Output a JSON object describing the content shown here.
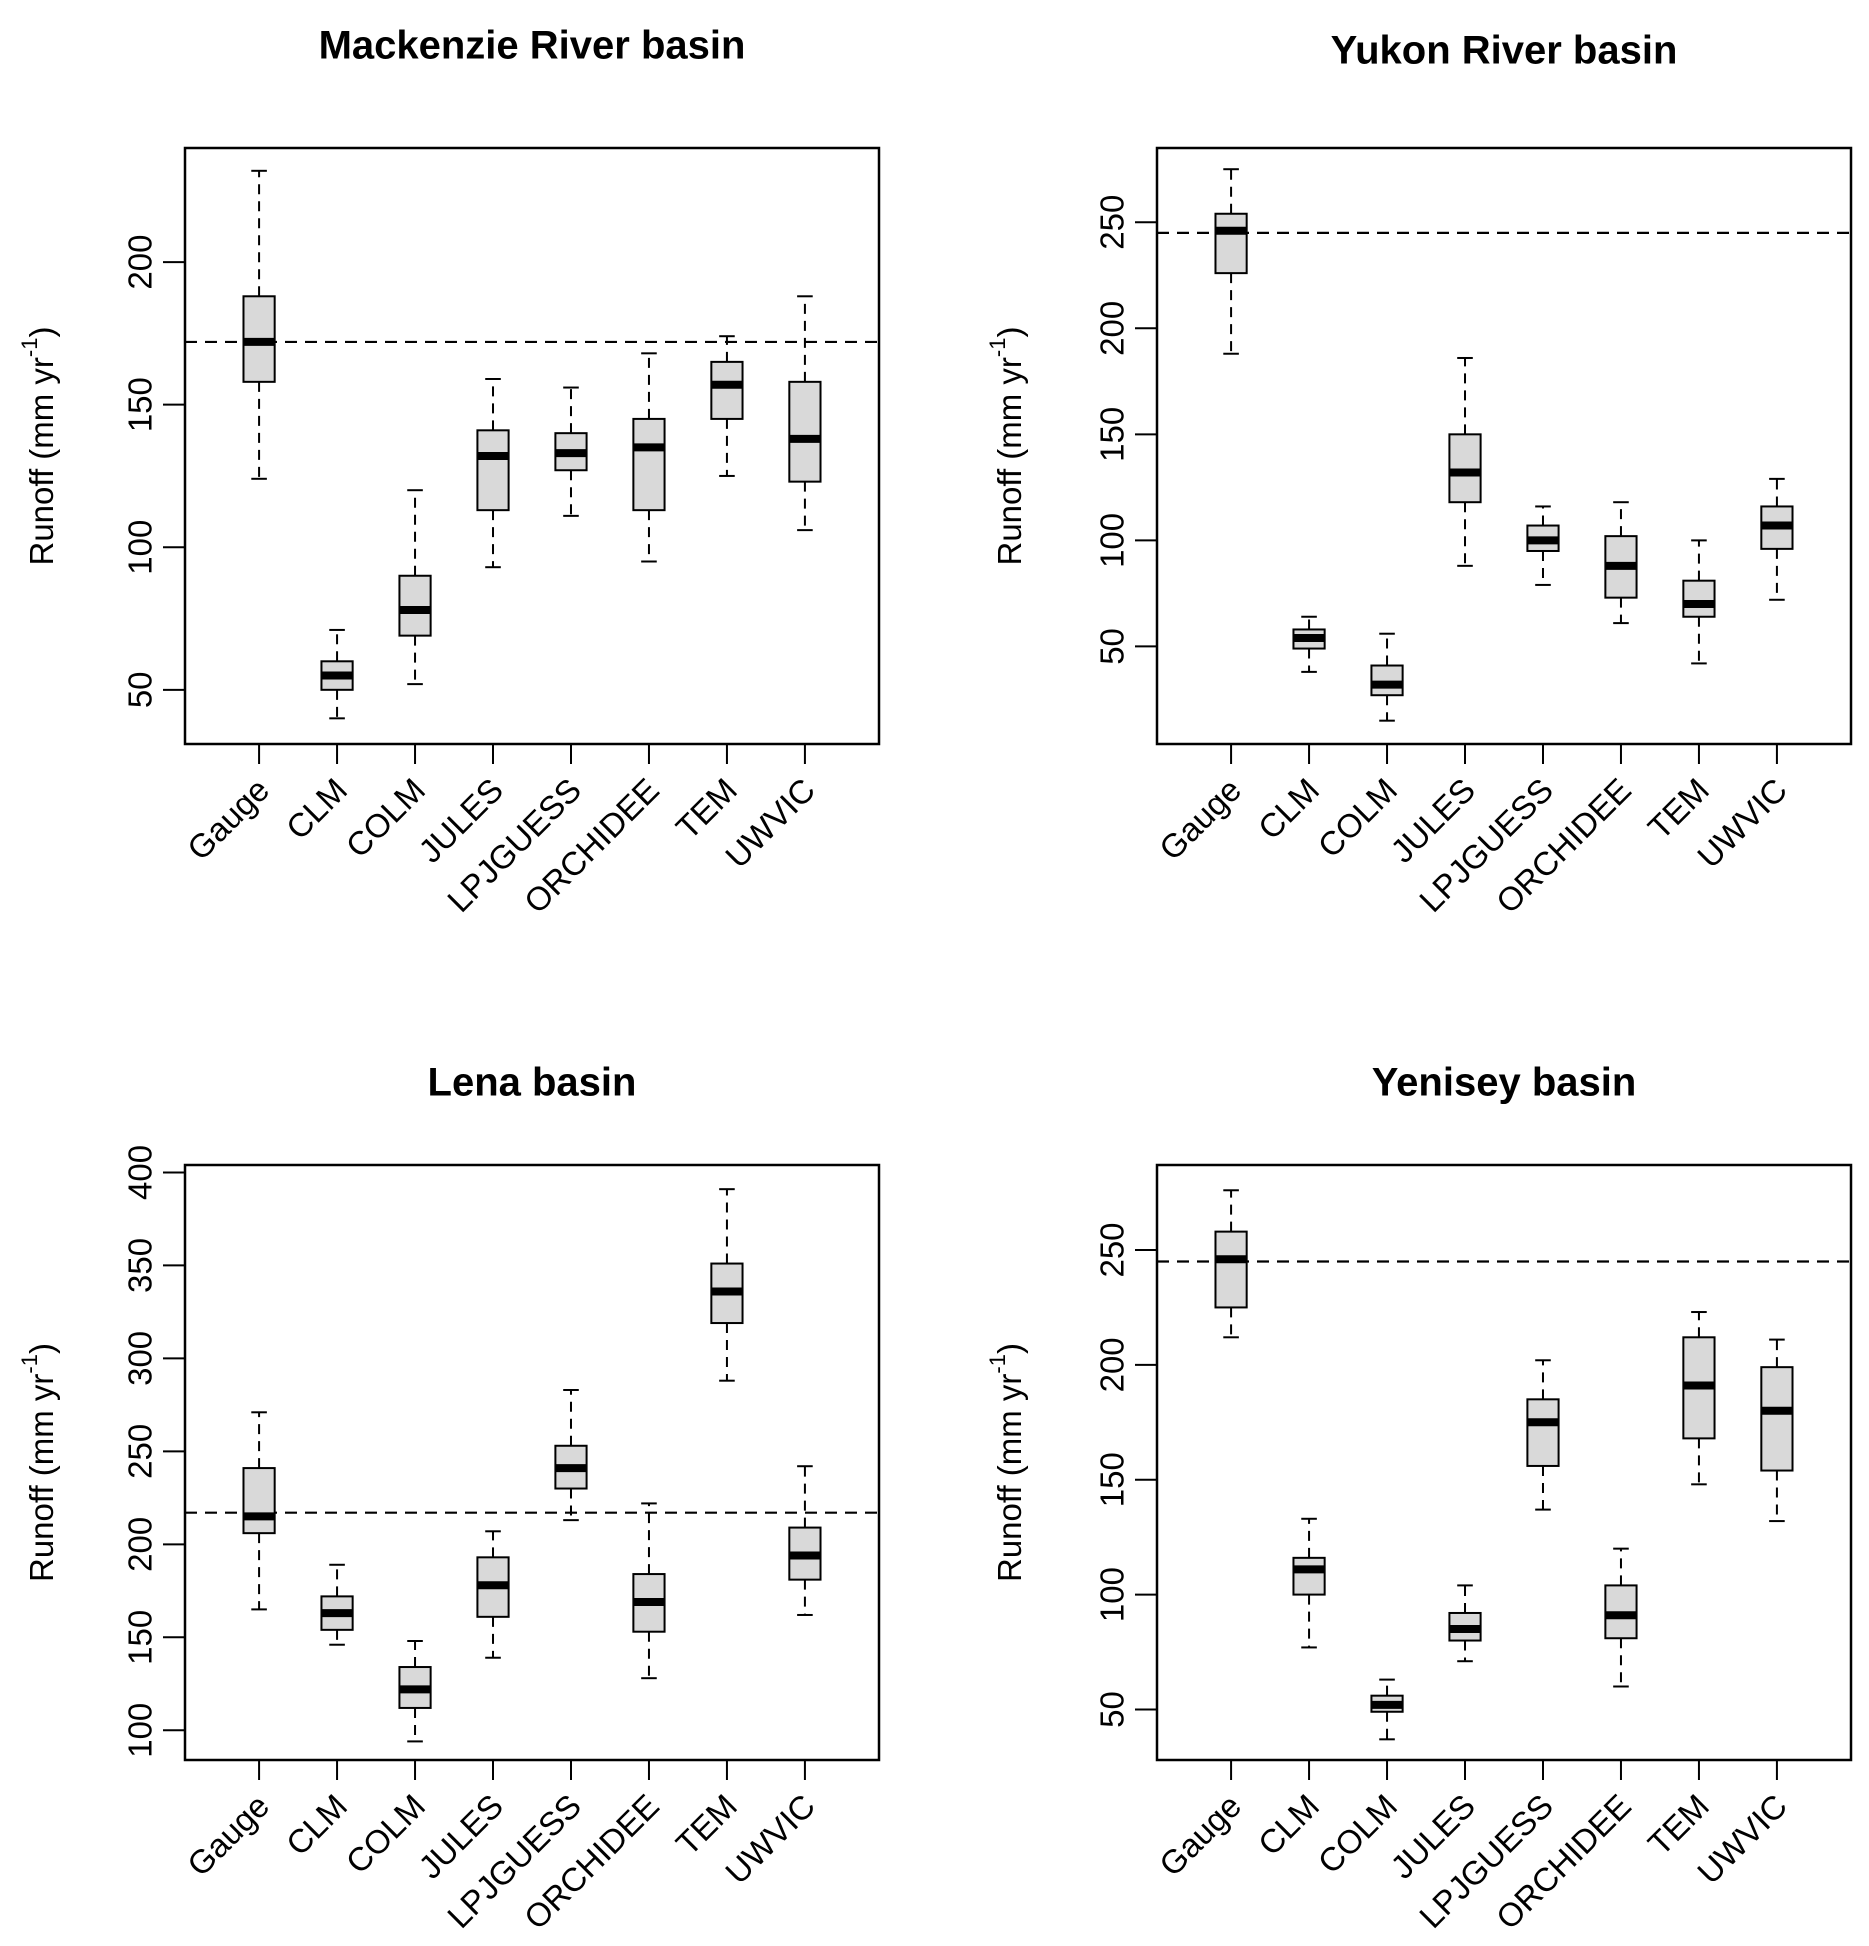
{
  "chart_data": [
    {
      "type": "box",
      "title": "Mackenzie River basin",
      "ylabel": {
        "main": "Runoff (mm yr",
        "sup": "-1",
        "close": ")"
      },
      "categories": [
        "Gauge",
        "CLM",
        "COLM",
        "JULES",
        "LPJGUESS",
        "ORCHIDEE",
        "TEM",
        "UWVIC"
      ],
      "ylim": [
        31,
        240
      ],
      "yticks": [
        50,
        100,
        150,
        200
      ],
      "reference_line": 172,
      "boxes": [
        {
          "min": 124,
          "q1": 158,
          "median": 172,
          "q3": 188,
          "max": 232
        },
        {
          "min": 40,
          "q1": 50,
          "median": 55,
          "q3": 60,
          "max": 71
        },
        {
          "min": 52,
          "q1": 69,
          "median": 78,
          "q3": 90,
          "max": 120
        },
        {
          "min": 93,
          "q1": 113,
          "median": 132,
          "q3": 141,
          "max": 159
        },
        {
          "min": 111,
          "q1": 127,
          "median": 133,
          "q3": 140,
          "max": 156
        },
        {
          "min": 95,
          "q1": 113,
          "median": 135,
          "q3": 145,
          "max": 168
        },
        {
          "min": 125,
          "q1": 145,
          "median": 157,
          "q3": 165,
          "max": 174
        },
        {
          "min": 106,
          "q1": 123,
          "median": 138,
          "q3": 158,
          "max": 188
        }
      ]
    },
    {
      "type": "box",
      "title": "Yukon River basin",
      "ylabel": {
        "main": "Runoff (mm yr",
        "sup": "-1",
        "close": ")"
      },
      "categories": [
        "Gauge",
        "CLM",
        "COLM",
        "JULES",
        "LPJGUESS",
        "ORCHIDEE",
        "TEM",
        "UWVIC"
      ],
      "ylim": [
        4,
        285
      ],
      "yticks": [
        50,
        100,
        150,
        200,
        250
      ],
      "reference_line": 245,
      "boxes": [
        {
          "min": 188,
          "q1": 226,
          "median": 246,
          "q3": 254,
          "max": 275
        },
        {
          "min": 38,
          "q1": 49,
          "median": 54,
          "q3": 58,
          "max": 64
        },
        {
          "min": 15,
          "q1": 27,
          "median": 32,
          "q3": 41,
          "max": 56
        },
        {
          "min": 88,
          "q1": 118,
          "median": 132,
          "q3": 150,
          "max": 186
        },
        {
          "min": 79,
          "q1": 95,
          "median": 100,
          "q3": 107,
          "max": 116
        },
        {
          "min": 61,
          "q1": 73,
          "median": 88,
          "q3": 102,
          "max": 118
        },
        {
          "min": 42,
          "q1": 64,
          "median": 70,
          "q3": 81,
          "max": 100
        },
        {
          "min": 72,
          "q1": 96,
          "median": 107,
          "q3": 116,
          "max": 129
        }
      ]
    },
    {
      "type": "box",
      "title": "Lena basin",
      "ylabel": {
        "main": "Runoff (mm yr",
        "sup": "-1",
        "close": ")"
      },
      "categories": [
        "Gauge",
        "CLM",
        "COLM",
        "JULES",
        "LPJGUESS",
        "ORCHIDEE",
        "TEM",
        "UWVIC"
      ],
      "ylim": [
        84,
        404
      ],
      "yticks": [
        100,
        150,
        200,
        250,
        300,
        350,
        400
      ],
      "reference_line": 217,
      "boxes": [
        {
          "min": 165,
          "q1": 206,
          "median": 215,
          "q3": 241,
          "max": 271
        },
        {
          "min": 146,
          "q1": 154,
          "median": 163,
          "q3": 172,
          "max": 189
        },
        {
          "min": 94,
          "q1": 112,
          "median": 122,
          "q3": 134,
          "max": 148
        },
        {
          "min": 139,
          "q1": 161,
          "median": 178,
          "q3": 193,
          "max": 207
        },
        {
          "min": 213,
          "q1": 230,
          "median": 241,
          "q3": 253,
          "max": 283
        },
        {
          "min": 128,
          "q1": 153,
          "median": 169,
          "q3": 184,
          "max": 222
        },
        {
          "min": 288,
          "q1": 319,
          "median": 336,
          "q3": 351,
          "max": 391
        },
        {
          "min": 162,
          "q1": 181,
          "median": 194,
          "q3": 209,
          "max": 242
        }
      ]
    },
    {
      "type": "box",
      "title": "Yenisey basin",
      "ylabel": {
        "main": "Runoff (mm yr",
        "sup": "-1",
        "close": ")"
      },
      "categories": [
        "Gauge",
        "CLM",
        "COLM",
        "JULES",
        "LPJGUESS",
        "ORCHIDEE",
        "TEM",
        "UWVIC"
      ],
      "ylim": [
        28,
        287
      ],
      "yticks": [
        50,
        100,
        150,
        200,
        250
      ],
      "reference_line": 245,
      "boxes": [
        {
          "min": 212,
          "q1": 225,
          "median": 246,
          "q3": 258,
          "max": 276
        },
        {
          "min": 77,
          "q1": 100,
          "median": 111,
          "q3": 116,
          "max": 133
        },
        {
          "min": 37,
          "q1": 49,
          "median": 52,
          "q3": 56,
          "max": 63
        },
        {
          "min": 71,
          "q1": 80,
          "median": 85,
          "q3": 92,
          "max": 104
        },
        {
          "min": 137,
          "q1": 156,
          "median": 175,
          "q3": 185,
          "max": 202
        },
        {
          "min": 60,
          "q1": 81,
          "median": 91,
          "q3": 104,
          "max": 120
        },
        {
          "min": 148,
          "q1": 168,
          "median": 191,
          "q3": 212,
          "max": 223
        },
        {
          "min": 132,
          "q1": 154,
          "median": 180,
          "q3": 199,
          "max": 211
        }
      ]
    }
  ]
}
